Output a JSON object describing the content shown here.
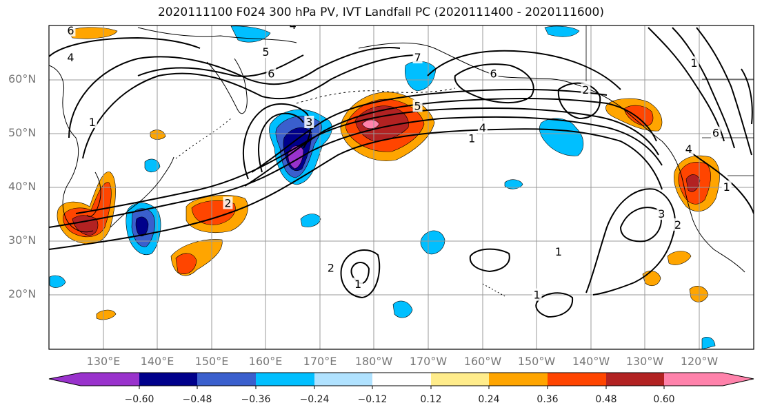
{
  "title": "2020111100 F024 300 hPa PV, IVT Landfall PC (2020111400 - 2020111600)",
  "lat_labels": [
    "60°N",
    "50°N",
    "40°N",
    "30°N",
    "20°N"
  ],
  "lon_labels": [
    "130°E",
    "140°E",
    "150°E",
    "160°E",
    "170°E",
    "180°W",
    "170°W",
    "160°W",
    "150°W",
    "140°W",
    "130°W",
    "120°W"
  ],
  "colorbar": {
    "ticks": [
      "−0.60",
      "−0.48",
      "−0.36",
      "−0.24",
      "−0.12",
      "0.12",
      "0.24",
      "0.36",
      "0.48",
      "0.60"
    ],
    "colors": {
      "under": "#9932CC",
      "b1": "#00008B",
      "b2": "#3A5FCD",
      "b3": "#00BFFF",
      "b4": "#B0E2FF",
      "neutral": "#FFFFFF",
      "p1": "#FFEC8B",
      "p2": "#FFA500",
      "p3": "#FF4500",
      "p4": "#B22222",
      "over": "#FF82AB"
    }
  },
  "contour_labels": [
    {
      "text": "1",
      "lon": 128,
      "lat": 52
    },
    {
      "text": "2",
      "lon": 153,
      "lat": 37
    },
    {
      "text": "3",
      "lon": 168,
      "lat": 52
    },
    {
      "text": "4",
      "lon": 200,
      "lat": 51
    },
    {
      "text": "5",
      "lon": 188,
      "lat": 55
    },
    {
      "text": "6",
      "lon": 202,
      "lat": 61
    },
    {
      "text": "7",
      "lon": 188,
      "lat": 64
    },
    {
      "text": "1",
      "lon": 198,
      "lat": 49
    },
    {
      "text": "1",
      "lon": 214,
      "lat": 28
    },
    {
      "text": "1",
      "lon": 210,
      "lat": 20
    },
    {
      "text": "2",
      "lon": 172,
      "lat": 25
    },
    {
      "text": "1",
      "lon": 177,
      "lat": 22
    },
    {
      "text": "2",
      "lon": 236,
      "lat": 33
    },
    {
      "text": "3",
      "lon": 233,
      "lat": 35
    },
    {
      "text": "2",
      "lon": 219,
      "lat": 58
    },
    {
      "text": "4",
      "lon": 165,
      "lat": 70
    },
    {
      "text": "5",
      "lon": 160,
      "lat": 65
    },
    {
      "text": "6",
      "lon": 161,
      "lat": 61
    },
    {
      "text": "6",
      "lon": 124,
      "lat": 69
    },
    {
      "text": "4",
      "lon": 124,
      "lat": 64
    },
    {
      "text": "1",
      "lon": 239,
      "lat": 63
    },
    {
      "text": "4",
      "lon": 238,
      "lat": 47
    },
    {
      "text": "6",
      "lon": 243,
      "lat": 50
    },
    {
      "text": "1",
      "lon": 245,
      "lat": 40
    }
  ]
}
